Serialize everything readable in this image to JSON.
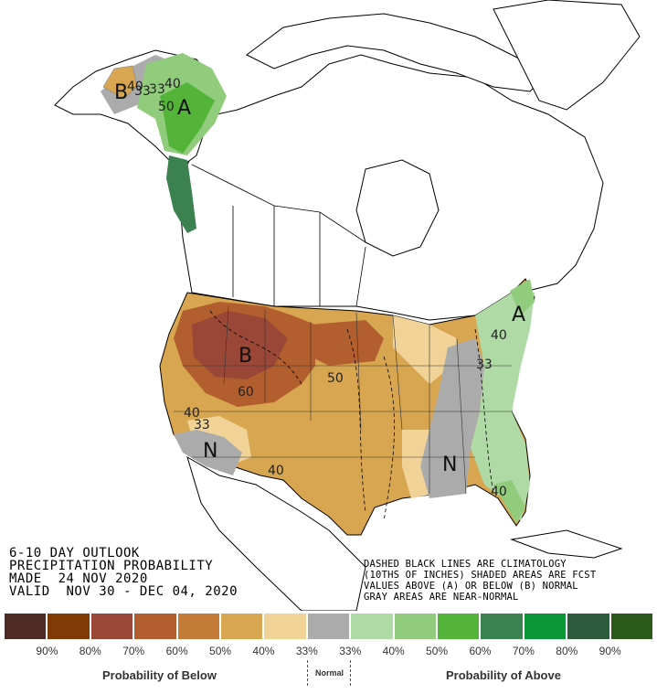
{
  "title_block": {
    "line1": "6-10 DAY OUTLOOK",
    "line2": "PRECIPITATION PROBABILITY",
    "line3": "MADE  24 NOV 2020",
    "line4": "VALID  NOV 30 - DEC 04, 2020"
  },
  "note_block": {
    "line1": "DASHED BLACK LINES ARE CLIMATOLOGY",
    "line2": "(10THS OF INCHES) SHADED AREAS ARE FCST",
    "line3": "VALUES ABOVE (A) OR BELOW (B) NORMAL",
    "line4": "GRAY AREAS ARE NEAR-NORMAL"
  },
  "map_labels": {
    "alaska_b": "B",
    "alaska_40": "40",
    "alaska_33a": "33",
    "alaska_33b": "33",
    "alaska_40b": "40",
    "alaska_50": "50",
    "alaska_a": "A",
    "west_b": "B",
    "west_60": "60",
    "west_40": "40",
    "west_33": "33",
    "southwest_n": "N",
    "south_40": "40",
    "plains_50": "50",
    "southeast_n": "N",
    "east_a": "A",
    "east_40": "40",
    "east_33": "33",
    "florida_40": "40"
  },
  "legend": {
    "colors": [
      "#4e2a25",
      "#7f3a05",
      "#9a4737",
      "#b35e2e",
      "#c47a37",
      "#d8a650",
      "#f1d397",
      "#ababab",
      "#afdaa5",
      "#90cc7c",
      "#54b339",
      "#3b8250",
      "#0d9638",
      "#2d5b3c",
      "#2c5a1b"
    ],
    "ticks": [
      "90%",
      "80%",
      "70%",
      "60%",
      "50%",
      "40%",
      "33%",
      "33%",
      "40%",
      "50%",
      "60%",
      "70%",
      "80%",
      "90%"
    ],
    "below_label": "Probability of Below",
    "normal_label": "Normal",
    "above_label": "Probability of Above"
  }
}
